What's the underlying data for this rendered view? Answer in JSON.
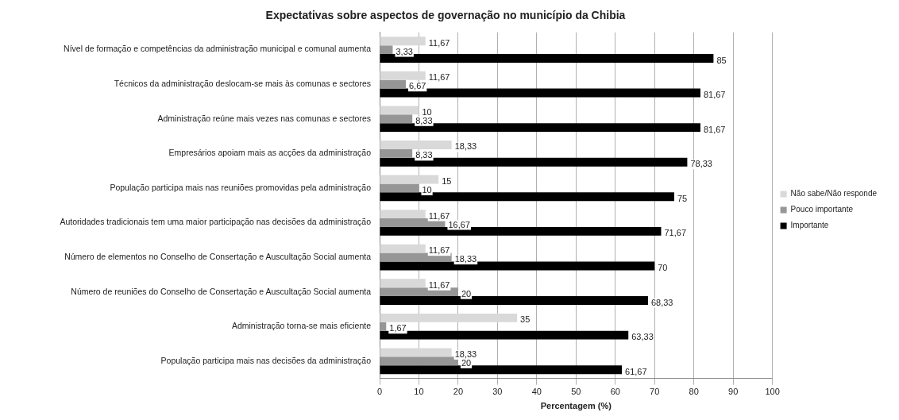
{
  "chart_data": {
    "type": "bar",
    "orientation": "horizontal",
    "title": "Expectativas sobre aspectos de governação no município da Chibia",
    "xlabel": "Percentagem (%)",
    "categories": [
      "Nível de formação e competências da administração municipal e comunal aumenta",
      "Técnicos da administração deslocam-se mais às comunas e sectores",
      "Administração reúne mais vezes nas comunas e sectores",
      "Empresários apoiam mais as acções da administração",
      "População participa mais nas reuniões promovidas pela administração",
      "Autoridades tradicionais tem uma maior participação nas decisões da administração",
      "Número de elementos no Conselho de Consertação e Auscultação Social aumenta",
      "Número de reuniões do Conselho de Consertação e Auscultação Social aumenta",
      "Administração torna-se mais eficiente",
      "População participa mais nas decisões da administração"
    ],
    "series": [
      {
        "name": "Não sabe/Não responde",
        "color": "#d9d9d9",
        "values": [
          11.67,
          11.67,
          10,
          18.33,
          15,
          11.67,
          11.67,
          11.67,
          35,
          18.33
        ],
        "value_labels": [
          "11,67",
          "11,67",
          "10",
          "18,33",
          "15",
          "11,67",
          "11,67",
          "11,67",
          "35",
          "18,33"
        ]
      },
      {
        "name": "Pouco importante",
        "color": "#969696",
        "values": [
          3.33,
          6.67,
          8.33,
          8.33,
          10,
          16.67,
          18.33,
          20,
          1.67,
          20
        ],
        "value_labels": [
          "3,33",
          "6,67",
          "8,33",
          "8,33",
          "10",
          "16,67",
          "18,33",
          "20",
          "1,67",
          "20"
        ]
      },
      {
        "name": "Importante",
        "color": "#000000",
        "values": [
          85,
          81.67,
          81.67,
          78.33,
          75,
          71.67,
          70,
          68.33,
          63.33,
          61.67
        ],
        "value_labels": [
          "85",
          "81,67",
          "81,67",
          "78,33",
          "75",
          "71,67",
          "70",
          "68,33",
          "63,33",
          "61,67"
        ]
      }
    ],
    "xlim": [
      0,
      100
    ],
    "xticks": [
      0,
      10,
      20,
      30,
      40,
      50,
      60,
      70,
      80,
      90,
      100
    ],
    "grid": "x",
    "legend": "right"
  }
}
